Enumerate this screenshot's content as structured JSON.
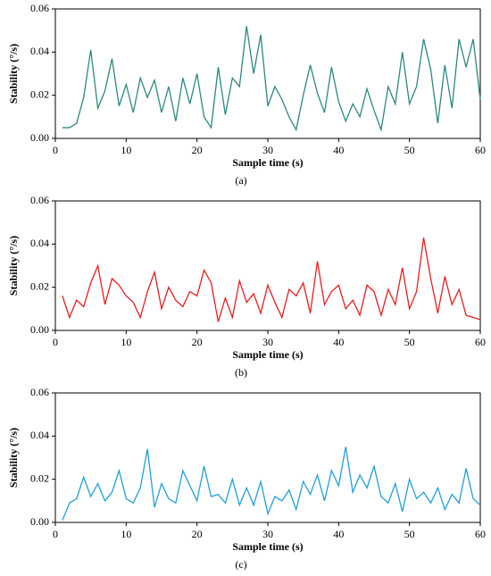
{
  "chart_data": [
    {
      "type": "line",
      "caption": "(a)",
      "x_label": "Sample time (s)",
      "y_label": "Stability (°/s)",
      "color": "#2a8a80",
      "x": [
        1,
        2,
        3,
        4,
        5,
        6,
        7,
        8,
        9,
        10,
        11,
        12,
        13,
        14,
        15,
        16,
        17,
        18,
        19,
        20,
        21,
        22,
        23,
        24,
        25,
        26,
        27,
        28,
        29,
        30,
        31,
        32,
        33,
        34,
        35,
        36,
        37,
        38,
        39,
        40,
        41,
        42,
        43,
        44,
        45,
        46,
        47,
        48,
        49,
        50,
        51,
        52,
        53,
        54,
        55,
        56,
        57,
        58,
        59,
        60
      ],
      "values": [
        0.005,
        0.005,
        0.007,
        0.019,
        0.041,
        0.014,
        0.022,
        0.037,
        0.015,
        0.025,
        0.012,
        0.028,
        0.019,
        0.027,
        0.012,
        0.024,
        0.008,
        0.028,
        0.016,
        0.03,
        0.01,
        0.005,
        0.033,
        0.011,
        0.028,
        0.024,
        0.052,
        0.03,
        0.048,
        0.015,
        0.024,
        0.018,
        0.01,
        0.004,
        0.02,
        0.034,
        0.021,
        0.012,
        0.033,
        0.017,
        0.008,
        0.016,
        0.01,
        0.023,
        0.013,
        0.004,
        0.024,
        0.016,
        0.04,
        0.016,
        0.024,
        0.046,
        0.032,
        0.007,
        0.034,
        0.014,
        0.046,
        0.033,
        0.046,
        0.018
      ],
      "xlim": [
        0,
        60
      ],
      "xticks": [
        0,
        10,
        20,
        30,
        40,
        50,
        60
      ],
      "ylim": [
        0,
        0.06
      ],
      "yticks": [
        {
          "value": 0,
          "label": "0.00"
        },
        {
          "value": 0.02,
          "label": "0.02"
        },
        {
          "value": 0.04,
          "label": "0.04"
        },
        {
          "value": 0.06,
          "label": "0.06"
        }
      ]
    },
    {
      "type": "line",
      "caption": "(b)",
      "x_label": "Sample time (s)",
      "y_label": "Stability (°/s)",
      "color": "#ee1c1c",
      "x": [
        1,
        2,
        3,
        4,
        5,
        6,
        7,
        8,
        9,
        10,
        11,
        12,
        13,
        14,
        15,
        16,
        17,
        18,
        19,
        20,
        21,
        22,
        23,
        24,
        25,
        26,
        27,
        28,
        29,
        30,
        31,
        32,
        33,
        34,
        35,
        36,
        37,
        38,
        39,
        40,
        41,
        42,
        43,
        44,
        45,
        46,
        47,
        48,
        49,
        50,
        51,
        52,
        53,
        54,
        55,
        56,
        57,
        58,
        59,
        60
      ],
      "values": [
        0.016,
        0.006,
        0.014,
        0.011,
        0.022,
        0.03,
        0.012,
        0.024,
        0.021,
        0.016,
        0.013,
        0.006,
        0.018,
        0.027,
        0.01,
        0.02,
        0.014,
        0.011,
        0.018,
        0.016,
        0.028,
        0.022,
        0.004,
        0.015,
        0.006,
        0.023,
        0.013,
        0.017,
        0.008,
        0.021,
        0.013,
        0.006,
        0.019,
        0.016,
        0.022,
        0.008,
        0.032,
        0.012,
        0.018,
        0.021,
        0.01,
        0.014,
        0.007,
        0.021,
        0.018,
        0.007,
        0.019,
        0.012,
        0.029,
        0.01,
        0.018,
        0.043,
        0.024,
        0.008,
        0.025,
        0.012,
        0.019,
        0.007,
        0.006,
        0.005
      ],
      "xlim": [
        0,
        60
      ],
      "xticks": [
        0,
        10,
        20,
        30,
        40,
        50,
        60
      ],
      "ylim": [
        0,
        0.06
      ],
      "yticks": [
        {
          "value": 0,
          "label": "0.00"
        },
        {
          "value": 0.02,
          "label": "0.02"
        },
        {
          "value": 0.04,
          "label": "0.04"
        },
        {
          "value": 0.06,
          "label": "0.06"
        }
      ]
    },
    {
      "type": "line",
      "caption": "(c)",
      "x_label": "Sample time (s)",
      "y_label": "Stability (°/s)",
      "color": "#1ea0e0",
      "x": [
        1,
        2,
        3,
        4,
        5,
        6,
        7,
        8,
        9,
        10,
        11,
        12,
        13,
        14,
        15,
        16,
        17,
        18,
        19,
        20,
        21,
        22,
        23,
        24,
        25,
        26,
        27,
        28,
        29,
        30,
        31,
        32,
        33,
        34,
        35,
        36,
        37,
        38,
        39,
        40,
        41,
        42,
        43,
        44,
        45,
        46,
        47,
        48,
        49,
        50,
        51,
        52,
        53,
        54,
        55,
        56,
        57,
        58,
        59,
        60
      ],
      "values": [
        0.001,
        0.009,
        0.011,
        0.021,
        0.012,
        0.018,
        0.01,
        0.014,
        0.024,
        0.011,
        0.009,
        0.016,
        0.034,
        0.007,
        0.018,
        0.011,
        0.009,
        0.024,
        0.017,
        0.01,
        0.026,
        0.012,
        0.013,
        0.009,
        0.02,
        0.008,
        0.016,
        0.008,
        0.019,
        0.004,
        0.012,
        0.01,
        0.015,
        0.006,
        0.019,
        0.013,
        0.022,
        0.01,
        0.024,
        0.017,
        0.035,
        0.014,
        0.022,
        0.016,
        0.026,
        0.012,
        0.009,
        0.018,
        0.005,
        0.02,
        0.011,
        0.014,
        0.009,
        0.016,
        0.006,
        0.013,
        0.009,
        0.025,
        0.011,
        0.008
      ],
      "xlim": [
        0,
        60
      ],
      "xticks": [
        0,
        10,
        20,
        30,
        40,
        50,
        60
      ],
      "ylim": [
        0,
        0.06
      ],
      "yticks": [
        {
          "value": 0,
          "label": "0.00"
        },
        {
          "value": 0.02,
          "label": "0.02"
        },
        {
          "value": 0.04,
          "label": "0.04"
        },
        {
          "value": 0.06,
          "label": "0.06"
        }
      ]
    }
  ]
}
